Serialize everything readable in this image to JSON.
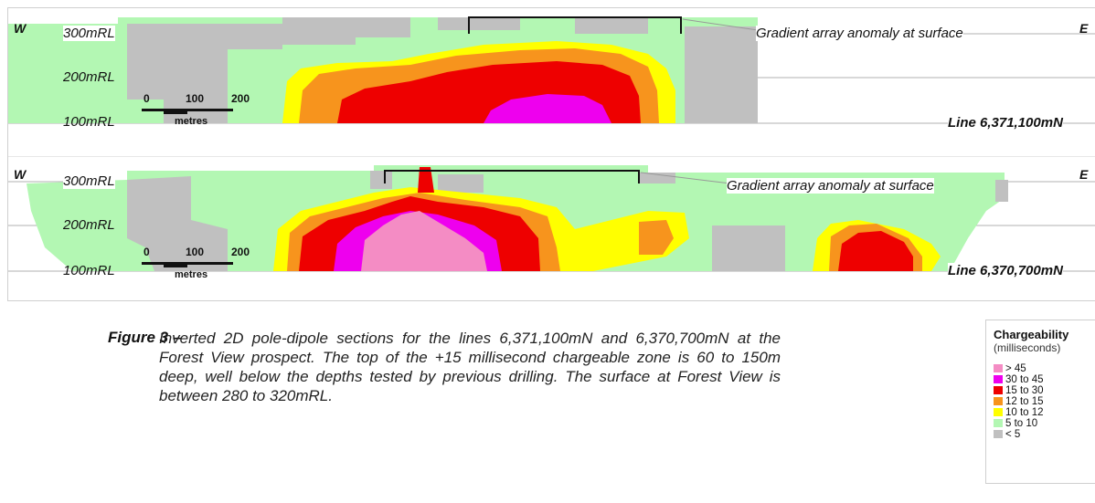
{
  "sections": [
    {
      "west": "W",
      "east": "E",
      "rl": [
        "300mRL",
        "200mRL",
        "100mRL"
      ],
      "anomaly_label": "Gradient array anomaly at surface",
      "line_label": "Line 6,371,100mN",
      "scale": {
        "ticks": [
          "0",
          "100",
          "200"
        ],
        "unit": "metres"
      }
    },
    {
      "west": "W",
      "east": "E",
      "rl": [
        "300mRL",
        "200mRL",
        "100mRL"
      ],
      "anomaly_label": "Gradient array anomaly at surface",
      "line_label": "Line 6,370,700mN",
      "scale": {
        "ticks": [
          "0",
          "100",
          "200"
        ],
        "unit": "metres"
      }
    }
  ],
  "caption": {
    "label": "Figure 3 –",
    "text": "Inverted 2D pole-dipole sections for the lines 6,371,100mN and 6,370,700mN at the Forest View prospect.  The top of the +15 millisecond chargeable zone is 60 to 150m deep, well below the depths tested by previous drilling.  The surface at Forest View is between 280 to 320mRL."
  },
  "legend": {
    "title": "Chargeability",
    "subtitle": "(milliseconds)",
    "items": [
      {
        "label": "> 45",
        "color": "#f48cc4"
      },
      {
        "label": "30 to 45",
        "color": "#ee00ee"
      },
      {
        "label": "15 to 30",
        "color": "#ee0000"
      },
      {
        "label": "12 to 15",
        "color": "#f7941d"
      },
      {
        "label": "10 to 12",
        "color": "#ffff00"
      },
      {
        "label": "5 to 10",
        "color": "#b3f7b3"
      },
      {
        "label": "< 5",
        "color": "#c0c0c0"
      }
    ]
  }
}
